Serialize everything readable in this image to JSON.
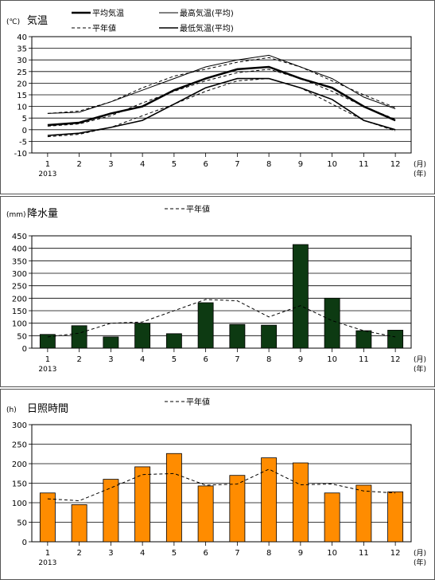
{
  "charts": [
    {
      "type": "line",
      "unit_label": "(℃)",
      "title": "気温",
      "x_categories": [
        "1",
        "2",
        "3",
        "4",
        "5",
        "6",
        "7",
        "8",
        "9",
        "10",
        "11",
        "12"
      ],
      "year_label": "2013",
      "x_unit_month": "(月)",
      "x_unit_year": "(年)",
      "y_ticks": [
        40,
        35,
        30,
        25,
        20,
        15,
        10,
        5,
        0,
        -5,
        -10
      ],
      "ylim": [
        -10,
        40
      ],
      "legend": [
        {
          "key": "avg",
          "label": "平均気温"
        },
        {
          "key": "max",
          "label": "最高気温(平均)"
        },
        {
          "key": "normal",
          "label": "平年値"
        },
        {
          "key": "min",
          "label": "最低気温(平均)"
        }
      ],
      "series": {
        "avg": [
          2,
          3,
          7,
          10,
          17,
          22,
          26,
          27,
          22,
          18,
          10,
          4
        ],
        "max": [
          7,
          7.5,
          12,
          17,
          22,
          27,
          30,
          32,
          27,
          22,
          14,
          9
        ],
        "min": [
          -2.5,
          -1.5,
          1,
          4,
          11,
          18,
          22,
          22,
          18,
          13,
          4,
          0
        ],
        "normal_avg": [
          1.5,
          2.5,
          6,
          11.5,
          16.5,
          21,
          24.5,
          26,
          22,
          16.5,
          10,
          4.5
        ],
        "normal_max": [
          7,
          8,
          12,
          18,
          23,
          26,
          29,
          31,
          27,
          21,
          15,
          9.5
        ],
        "normal_min": [
          -3,
          -2,
          1,
          6,
          11,
          16.5,
          21,
          22,
          18,
          11,
          4,
          -0.5
        ]
      }
    },
    {
      "type": "bar",
      "unit_label": "(mm)",
      "title": "降水量",
      "x_categories": [
        "1",
        "2",
        "3",
        "4",
        "5",
        "6",
        "7",
        "8",
        "9",
        "10",
        "11",
        "12"
      ],
      "year_label": "2013",
      "x_unit_month": "(月)",
      "x_unit_year": "(年)",
      "y_ticks": [
        450,
        400,
        350,
        300,
        250,
        200,
        150,
        100,
        50,
        0
      ],
      "ylim": [
        0,
        450
      ],
      "legend_normal": "平年値",
      "bar_color": "#0d3a12",
      "values": [
        55,
        90,
        45,
        100,
        58,
        182,
        95,
        92,
        415,
        200,
        70,
        72
      ],
      "normal": [
        45,
        60,
        100,
        105,
        150,
        195,
        190,
        125,
        170,
        110,
        70,
        45
      ]
    },
    {
      "type": "bar",
      "unit_label": "(h)",
      "title": "日照時間",
      "x_categories": [
        "1",
        "2",
        "3",
        "4",
        "5",
        "6",
        "7",
        "8",
        "9",
        "10",
        "11",
        "12"
      ],
      "year_label": "2013",
      "x_unit_month": "(月)",
      "x_unit_year": "(年)",
      "y_ticks": [
        300,
        250,
        200,
        150,
        100,
        50,
        0
      ],
      "ylim": [
        0,
        300
      ],
      "legend_normal": "平年値",
      "bar_color": "#ff8c00",
      "values": [
        125,
        95,
        160,
        192,
        226,
        143,
        170,
        215,
        202,
        125,
        145,
        128
      ],
      "normal": [
        110,
        105,
        138,
        172,
        175,
        145,
        148,
        186,
        146,
        148,
        130,
        125
      ]
    }
  ]
}
